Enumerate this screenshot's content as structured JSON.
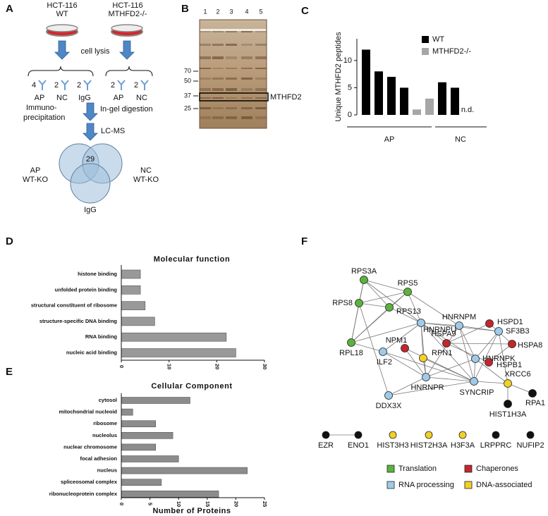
{
  "panel_labels": [
    "A",
    "B",
    "C",
    "D",
    "E",
    "F"
  ],
  "schematic": {
    "wt_line": "HCT-116",
    "wt_genotype": "WT",
    "ko_line": "HCT-116",
    "ko_genotype": "MTHFD2-/-",
    "lysis": "cell lysis",
    "ip_counts": [
      "4",
      "2",
      "2",
      "2",
      "2"
    ],
    "ip_labels": [
      "AP",
      "NC",
      "IgG",
      "AP",
      "NC"
    ],
    "step_ip": [
      "Immuno-",
      "precipitation"
    ],
    "step_digest": "In-gel digestion",
    "step_ms": "LC-MS",
    "venn": {
      "ap": [
        "AP",
        "WT-KO"
      ],
      "nc": [
        "NC",
        "WT-KO"
      ],
      "igg": "IgG",
      "overlap": "29"
    }
  },
  "gel": {
    "lanes": [
      "1",
      "2",
      "3",
      "4",
      "5"
    ],
    "markers": [
      70,
      50,
      37,
      25
    ],
    "band": "MTHFD2"
  },
  "chart_data": [
    {
      "type": "bar",
      "ylabel": "Unique MTHFD2 peptides",
      "categories": [
        null,
        null,
        null,
        null,
        null,
        null,
        null,
        null,
        null
      ],
      "series": [
        {
          "name": "WT",
          "color": "#000000",
          "values": [
            12,
            8,
            7,
            5,
            null,
            null,
            6,
            5,
            null
          ]
        },
        {
          "name": "MTHFD2-/-",
          "color": "#a6a6a6",
          "values": [
            null,
            null,
            null,
            null,
            1,
            3,
            null,
            null,
            null
          ]
        }
      ],
      "ylim": [
        0,
        14
      ],
      "yticks": [
        0,
        5,
        10
      ],
      "groups": [
        "AP",
        "NC"
      ],
      "annotation": "n.d.",
      "legend": "upper right"
    },
    {
      "type": "barh",
      "title": "Molecular function",
      "categories": [
        "histone binding",
        "unfolded protein binding",
        "structural constituent of ribosome",
        "structure-specific DNA binding",
        "RNA binding",
        "nucleic acid binding"
      ],
      "values": [
        4,
        4,
        5,
        7,
        22,
        24
      ],
      "color": "#999999",
      "xlim": [
        0,
        30
      ],
      "xticks": [
        0,
        10,
        20,
        30
      ]
    },
    {
      "type": "barh",
      "title": "Cellular Component",
      "xlabel": "Number of Proteins",
      "categories": [
        "cytosol",
        "mitochondrial nucleoid",
        "ribosome",
        "nucleolus",
        "nuclear chromosome",
        "focal adhesion",
        "nucleus",
        "spliceosomal complex",
        "ribonucleoprotein complex"
      ],
      "values": [
        12,
        2,
        6,
        9,
        6,
        10,
        22,
        7,
        17
      ],
      "color": "#8c8c8c",
      "xlim": [
        0,
        25
      ],
      "xticks": [
        0,
        5,
        10,
        15,
        20,
        25
      ]
    }
  ],
  "network": {
    "nodes": [
      {
        "name": "RPS3A",
        "color": "#5ab43c"
      },
      {
        "name": "RPS5",
        "color": "#5ab43c"
      },
      {
        "name": "RPS8",
        "color": "#5ab43c"
      },
      {
        "name": "RPS13",
        "color": "#5ab43c"
      },
      {
        "name": "RPL18",
        "color": "#5ab43c"
      },
      {
        "name": "HNRNPU",
        "color": "#9fcbe9"
      },
      {
        "name": "HNRNPM",
        "color": "#9fcbe9"
      },
      {
        "name": "SF3B3",
        "color": "#9fcbe9"
      },
      {
        "name": "NPM1",
        "color": "#c1272d"
      },
      {
        "name": "RPN1",
        "color": "#f3d028"
      },
      {
        "name": "ILF2",
        "color": "#9fcbe9"
      },
      {
        "name": "HNRNPK",
        "color": "#9fcbe9"
      },
      {
        "name": "HNRNPR",
        "color": "#9fcbe9"
      },
      {
        "name": "SYNCRIP",
        "color": "#9fcbe9"
      },
      {
        "name": "XRCC6",
        "color": "#f3d028"
      },
      {
        "name": "RPA1",
        "color": "#111111"
      },
      {
        "name": "HIST1H3A",
        "color": "#111111"
      },
      {
        "name": "DDX3X",
        "color": "#9fcbe9"
      },
      {
        "name": "HSPA9",
        "color": "#c1272d"
      },
      {
        "name": "HSPD1",
        "color": "#c1272d"
      },
      {
        "name": "HSPA8",
        "color": "#c1272d"
      },
      {
        "name": "HSPB1",
        "color": "#c1272d"
      }
    ],
    "unconnected": [
      {
        "name": "EZR",
        "color": "#111111"
      },
      {
        "name": "ENO1",
        "color": "#111111"
      },
      {
        "name": "HIST3H3",
        "color": "#f3d028"
      },
      {
        "name": "HIST2H3A",
        "color": "#f3d028"
      },
      {
        "name": "H3F3A",
        "color": "#f3d028"
      },
      {
        "name": "LRPPRC",
        "color": "#111111"
      },
      {
        "name": "NUFIP2",
        "color": "#111111"
      }
    ],
    "legend": [
      {
        "name": "Translation",
        "color": "#5ab43c"
      },
      {
        "name": "Chaperones",
        "color": "#c1272d"
      },
      {
        "name": "RNA processing",
        "color": "#9fcbe9"
      },
      {
        "name": "DNA-associated",
        "color": "#f3d028"
      }
    ]
  }
}
